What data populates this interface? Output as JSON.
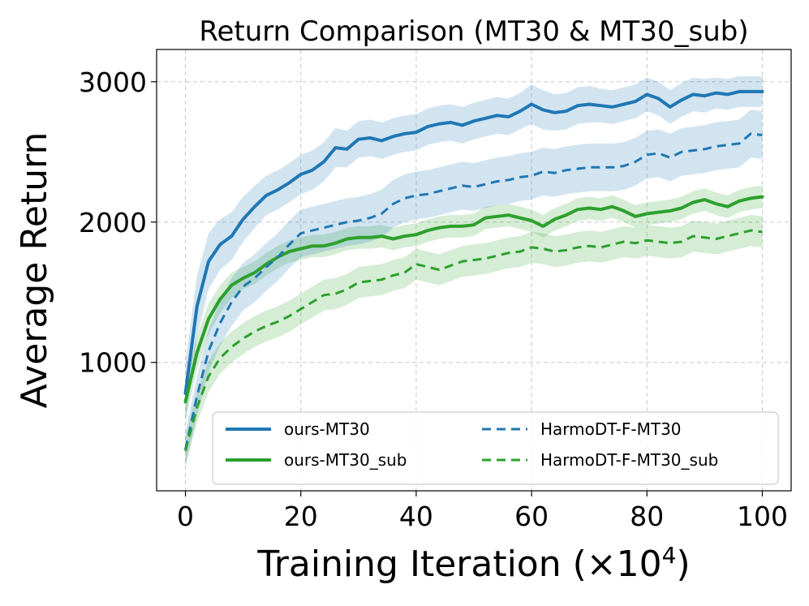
{
  "chart_data": {
    "type": "line",
    "title": "Return Comparison (MT30 & MT30_sub)",
    "xlabel": "Training Iteration (×10",
    "xlabel_superscript": "4",
    "xlabel_suffix": ")",
    "ylabel": "Average Return",
    "xlim": [
      -5,
      105
    ],
    "ylim": [
      85,
      3230
    ],
    "xticks": [
      0,
      20,
      40,
      60,
      80,
      100
    ],
    "yticks": [
      1000,
      2000,
      3000
    ],
    "grid": true,
    "legend_position": "lower-right",
    "legend_columns": 2,
    "x": [
      0,
      2,
      4,
      6,
      8,
      10,
      12,
      14,
      16,
      18,
      20,
      22,
      24,
      26,
      28,
      30,
      32,
      34,
      36,
      38,
      40,
      42,
      44,
      46,
      48,
      50,
      52,
      54,
      56,
      58,
      60,
      62,
      64,
      66,
      68,
      70,
      72,
      74,
      76,
      78,
      80,
      82,
      84,
      86,
      88,
      90,
      92,
      94,
      96,
      98,
      100
    ],
    "series": [
      {
        "name": "ours-MT30",
        "color": "#1f77b4",
        "style": "solid",
        "values": [
          780,
          1400,
          1720,
          1840,
          1900,
          2020,
          2110,
          2190,
          2230,
          2280,
          2340,
          2370,
          2430,
          2530,
          2520,
          2590,
          2600,
          2580,
          2610,
          2630,
          2640,
          2680,
          2700,
          2710,
          2690,
          2720,
          2740,
          2760,
          2750,
          2790,
          2840,
          2800,
          2780,
          2790,
          2830,
          2840,
          2830,
          2820,
          2840,
          2860,
          2910,
          2880,
          2820,
          2870,
          2910,
          2900,
          2920,
          2910,
          2930,
          2930,
          2930
        ],
        "band": [
          220,
          220,
          200,
          180,
          170,
          160,
          150,
          140,
          140,
          140,
          140,
          140,
          140,
          140,
          130,
          130,
          130,
          130,
          130,
          130,
          130,
          130,
          130,
          130,
          130,
          130,
          130,
          130,
          130,
          130,
          140,
          140,
          130,
          130,
          130,
          130,
          120,
          120,
          120,
          120,
          120,
          120,
          120,
          120,
          120,
          120,
          110,
          110,
          110,
          110,
          110
        ]
      },
      {
        "name": "ours-MT30_sub",
        "color": "#2ca02c",
        "style": "solid",
        "values": [
          720,
          1070,
          1310,
          1450,
          1550,
          1600,
          1640,
          1700,
          1750,
          1790,
          1810,
          1830,
          1830,
          1850,
          1880,
          1890,
          1890,
          1900,
          1880,
          1900,
          1910,
          1940,
          1960,
          1970,
          1970,
          1980,
          2030,
          2040,
          2050,
          2030,
          2010,
          1970,
          2020,
          2050,
          2090,
          2100,
          2090,
          2110,
          2080,
          2040,
          2060,
          2070,
          2080,
          2100,
          2140,
          2160,
          2130,
          2110,
          2150,
          2170,
          2180
        ],
        "band": [
          130,
          120,
          110,
          100,
          90,
          80,
          80,
          80,
          80,
          80,
          80,
          80,
          80,
          80,
          80,
          80,
          80,
          80,
          80,
          80,
          80,
          80,
          80,
          80,
          80,
          80,
          80,
          80,
          80,
          80,
          80,
          80,
          80,
          80,
          80,
          80,
          80,
          80,
          80,
          80,
          80,
          80,
          80,
          80,
          80,
          80,
          80,
          80,
          80,
          80,
          80
        ]
      },
      {
        "name": "HarmoDT-F-MT30",
        "color": "#1f77b4",
        "style": "dashed",
        "values": [
          380,
          760,
          1080,
          1280,
          1430,
          1540,
          1600,
          1680,
          1750,
          1840,
          1920,
          1940,
          1960,
          1980,
          2000,
          2010,
          2030,
          2060,
          2130,
          2170,
          2190,
          2200,
          2220,
          2240,
          2260,
          2250,
          2270,
          2290,
          2300,
          2320,
          2330,
          2360,
          2350,
          2370,
          2380,
          2390,
          2390,
          2390,
          2400,
          2430,
          2480,
          2490,
          2460,
          2500,
          2510,
          2520,
          2540,
          2550,
          2560,
          2630,
          2620
        ],
        "band": [
          130,
          140,
          150,
          160,
          170,
          170,
          170,
          170,
          170,
          170,
          170,
          170,
          170,
          170,
          170,
          170,
          170,
          170,
          170,
          170,
          170,
          170,
          170,
          170,
          170,
          170,
          170,
          170,
          170,
          170,
          170,
          170,
          170,
          170,
          170,
          170,
          170,
          170,
          170,
          170,
          170,
          170,
          170,
          170,
          170,
          170,
          170,
          170,
          170,
          170,
          170
        ]
      },
      {
        "name": "HarmoDT-F-MT30_sub",
        "color": "#2ca02c",
        "style": "dashed",
        "values": [
          370,
          680,
          900,
          1030,
          1110,
          1170,
          1220,
          1260,
          1290,
          1330,
          1380,
          1430,
          1480,
          1490,
          1520,
          1570,
          1580,
          1590,
          1620,
          1640,
          1700,
          1680,
          1660,
          1690,
          1720,
          1730,
          1740,
          1760,
          1780,
          1790,
          1820,
          1810,
          1790,
          1800,
          1820,
          1830,
          1820,
          1840,
          1860,
          1850,
          1870,
          1860,
          1850,
          1860,
          1900,
          1890,
          1880,
          1900,
          1920,
          1940,
          1930
        ],
        "band": [
          100,
          110,
          110,
          110,
          110,
          110,
          110,
          110,
          110,
          110,
          110,
          110,
          110,
          110,
          110,
          110,
          110,
          110,
          110,
          110,
          110,
          110,
          110,
          110,
          110,
          110,
          110,
          110,
          110,
          110,
          110,
          110,
          110,
          110,
          110,
          110,
          110,
          110,
          110,
          110,
          110,
          110,
          110,
          110,
          110,
          110,
          110,
          110,
          110,
          110,
          110
        ]
      }
    ]
  }
}
